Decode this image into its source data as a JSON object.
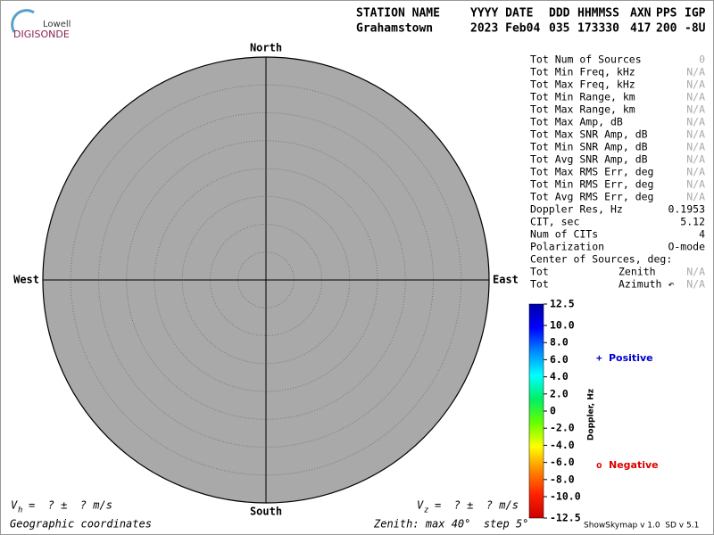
{
  "logo": {
    "line1": "Lowell",
    "line2": "DIGISONDE"
  },
  "header": {
    "columns": [
      "STATION NAME",
      "YYYY DATE",
      "DDD",
      "HHMMSS",
      "AXN",
      "PPS",
      "IGP"
    ],
    "values": [
      "Grahamstown",
      "2023 Feb04",
      "035",
      "173330",
      "417",
      "200",
      "-8U"
    ]
  },
  "skymap": {
    "type": "polar",
    "north": "North",
    "south": "South",
    "east": "East",
    "west": "West",
    "zenith_max": 40,
    "zenith_step": 5,
    "background": "#a9a9a9"
  },
  "stats": {
    "rows": [
      {
        "label": "Tot Num of Sources",
        "value": "0",
        "color": "#aaaaaa"
      },
      {
        "label": "Tot Min Freq, kHz",
        "value": "N/A",
        "color": "#aaaaaa"
      },
      {
        "label": "Tot Max Freq, kHz",
        "value": "N/A",
        "color": "#aaaaaa"
      },
      {
        "label": "Tot Min Range, km",
        "value": "N/A",
        "color": "#aaaaaa"
      },
      {
        "label": "Tot Max Range, km",
        "value": "N/A",
        "color": "#aaaaaa"
      },
      {
        "label": "Tot Max Amp, dB",
        "value": "N/A",
        "color": "#aaaaaa"
      },
      {
        "label": "Tot Max SNR Amp, dB",
        "value": "N/A",
        "color": "#aaaaaa"
      },
      {
        "label": "Tot Min SNR Amp, dB",
        "value": "N/A",
        "color": "#aaaaaa"
      },
      {
        "label": "Tot Avg SNR Amp, dB",
        "value": "N/A",
        "color": "#aaaaaa"
      },
      {
        "label": "Tot Max RMS Err, deg",
        "value": "N/A",
        "color": "#aaaaaa"
      },
      {
        "label": "Tot Min RMS Err, deg",
        "value": "N/A",
        "color": "#aaaaaa"
      },
      {
        "label": "Tot Avg RMS Err, deg",
        "value": "N/A",
        "color": "#aaaaaa"
      },
      {
        "label": "Doppler Res, Hz",
        "value": "0.1953",
        "color": "#000000"
      },
      {
        "label": "CIT, sec",
        "value": "5.12",
        "color": "#000000"
      },
      {
        "label": "Num of CITs",
        "value": "4",
        "color": "#000000"
      },
      {
        "label": "Polarization",
        "value": "O-mode",
        "color": "#000000"
      },
      {
        "label": "Center of Sources, deg:"
      },
      {
        "label": "Tot",
        "sublabel": "Zenith",
        "value": "N/A",
        "color": "#aaaaaa"
      },
      {
        "label": "Tot",
        "sublabel": "Azimuth ↶",
        "value": "N/A",
        "color": "#aaaaaa"
      }
    ]
  },
  "colorbar": {
    "label": "Doppler, Hz",
    "ylim": [
      -12.5,
      12.5
    ],
    "yticks": [
      12.5,
      {
        "value": 10,
        "label": "10.0"
      },
      {
        "value": 8,
        "label": "8.0"
      },
      {
        "value": 6,
        "label": "6.0"
      },
      {
        "value": 4,
        "label": "4.0"
      },
      {
        "value": 2,
        "label": "2.0"
      },
      0,
      {
        "value": -2,
        "label": "-2.0"
      },
      {
        "value": -4,
        "label": "-4.0"
      },
      {
        "value": -6,
        "label": "-6.0"
      },
      {
        "value": -8,
        "label": "-8.0"
      },
      {
        "value": -10,
        "label": "-10.0"
      },
      -12.5
    ],
    "colors": [
      "#cc0000",
      "#ff2200",
      "#ff8800",
      "#ffff00",
      "#66ff00",
      "#00ee66",
      "#00ffff",
      "#0088ff",
      "#0000ff",
      "#0000aa"
    ],
    "positive": {
      "symbol": "+",
      "label": "Positive",
      "color": "#0000cc"
    },
    "negative": {
      "symbol": "o",
      "label": "Negative",
      "color": "#dd0000"
    }
  },
  "footer": {
    "vh": {
      "symbol": "V",
      "sub": "h",
      "text": "=  ? ±  ? m/s"
    },
    "vz": {
      "symbol": "V",
      "sub": "z",
      "text": "=  ? ±  ? m/s"
    },
    "coords": "Geographic coordinates",
    "zenith": "Zenith: max 40°  step 5°",
    "version": "ShowSkymap v 1.0  SD v 5.1"
  }
}
